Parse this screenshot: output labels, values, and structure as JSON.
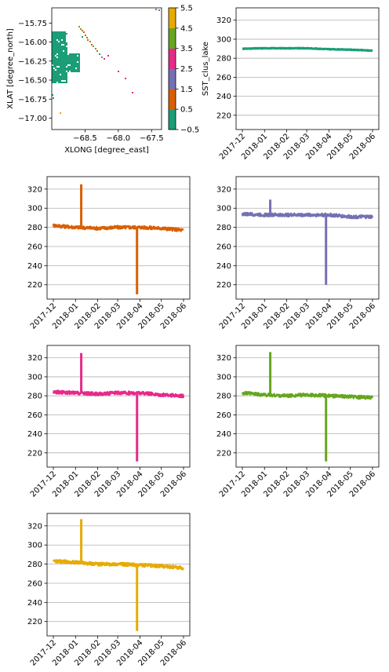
{
  "colors": {
    "teal": "#1b9e77",
    "orange": "#d95f02",
    "purple": "#7570b3",
    "pink": "#e7298a",
    "green": "#66a61e",
    "gold": "#e6ab02",
    "grid": "#b0b0b0"
  },
  "chart_data": [
    {
      "type": "heatmap",
      "panel": "map",
      "xlabel": "XLONG [degree_east]",
      "ylabel": "XLAT [degree_north]",
      "xticks": [
        "−68.5",
        "−68.0",
        "−67.5"
      ],
      "xtick_values": [
        -68.5,
        -68.0,
        -67.5
      ],
      "yticks": [
        "−15.75",
        "−16.00",
        "−16.25",
        "−16.50",
        "−16.75",
        "−17.00"
      ],
      "ytick_values": [
        -15.75,
        -16.0,
        -16.25,
        -16.5,
        -16.75,
        -17.0
      ],
      "xlim": [
        -69.0,
        -67.35
      ],
      "ylim": [
        -17.15,
        -15.55
      ],
      "colorbar": {
        "ticks": [
          "−0.5",
          "0.5",
          "1.5",
          "2.5",
          "3.5",
          "4.5",
          "5.5"
        ],
        "range": [
          -0.5,
          5.5
        ],
        "class_colors": [
          "#1b9e77",
          "#d95f02",
          "#7570b3",
          "#e7298a",
          "#66a61e",
          "#e6ab02"
        ]
      }
    },
    {
      "type": "line",
      "panel": "cluster-0",
      "color": "#1b9e77",
      "ylabel": "SST_clus_lake",
      "x": [
        "2017-12-01",
        "2018-01-01",
        "2018-02-01",
        "2018-03-01",
        "2018-04-01",
        "2018-05-01",
        "2018-06-01"
      ],
      "y": [
        290,
        290.5,
        290.5,
        290.5,
        289.5,
        289,
        288
      ],
      "ylim": [
        205,
        333
      ],
      "grid": "y"
    },
    {
      "type": "line",
      "panel": "cluster-1",
      "color": "#d95f02",
      "x": [
        "2017-12-01",
        "2018-01-01",
        "2018-02-01",
        "2018-03-01",
        "2018-04-01",
        "2018-05-01",
        "2018-06-01"
      ],
      "y": [
        282,
        280,
        279,
        280,
        280,
        279,
        277
      ],
      "spike_up": {
        "x": "2018-01-09",
        "y": 325
      },
      "spike_down": {
        "x": "2018-03-28",
        "y": 210
      },
      "ylim": [
        205,
        333
      ],
      "grid": "y"
    },
    {
      "type": "line",
      "panel": "cluster-2",
      "color": "#7570b3",
      "x": [
        "2017-12-01",
        "2018-01-01",
        "2018-02-01",
        "2018-03-01",
        "2018-04-01",
        "2018-05-01",
        "2018-06-01"
      ],
      "y": [
        294,
        293,
        293,
        293,
        293,
        291,
        291
      ],
      "spike_up": {
        "x": "2018-01-09",
        "y": 309
      },
      "spike_down": {
        "x": "2018-03-28",
        "y": 220
      },
      "ylim": [
        205,
        333
      ],
      "grid": "y"
    },
    {
      "type": "line",
      "panel": "cluster-3",
      "color": "#e7298a",
      "x": [
        "2017-12-01",
        "2018-01-01",
        "2018-02-01",
        "2018-03-01",
        "2018-04-01",
        "2018-05-01",
        "2018-06-01"
      ],
      "y": [
        284,
        283,
        282,
        283,
        283,
        281,
        280
      ],
      "spike_up": {
        "x": "2018-01-09",
        "y": 325
      },
      "spike_down": {
        "x": "2018-03-28",
        "y": 211
      },
      "ylim": [
        205,
        333
      ],
      "grid": "y"
    },
    {
      "type": "line",
      "panel": "cluster-4",
      "color": "#66a61e",
      "x": [
        "2017-12-01",
        "2018-01-01",
        "2018-02-01",
        "2018-03-01",
        "2018-04-01",
        "2018-05-01",
        "2018-06-01"
      ],
      "y": [
        283,
        281,
        280,
        281,
        280,
        279,
        278
      ],
      "spike_up": {
        "x": "2018-01-09",
        "y": 326
      },
      "spike_down": {
        "x": "2018-03-28",
        "y": 211
      },
      "ylim": [
        205,
        333
      ],
      "grid": "y"
    },
    {
      "type": "line",
      "panel": "cluster-5",
      "color": "#e6ab02",
      "x": [
        "2017-12-01",
        "2018-01-01",
        "2018-02-01",
        "2018-03-01",
        "2018-04-01",
        "2018-05-01",
        "2018-06-01"
      ],
      "y": [
        283,
        282,
        280,
        280,
        279,
        278,
        276
      ],
      "spike_up": {
        "x": "2018-01-09",
        "y": 327
      },
      "spike_down": {
        "x": "2018-03-28",
        "y": 210
      },
      "ylim": [
        205,
        333
      ],
      "grid": "y"
    }
  ],
  "axes": {
    "ts_yticks": [
      "220",
      "240",
      "260",
      "280",
      "300",
      "320"
    ],
    "ts_ytick_values": [
      220,
      240,
      260,
      280,
      300,
      320
    ],
    "ts_xticks": [
      "2017-12",
      "2018-01",
      "2018-02",
      "2018-03",
      "2018-04",
      "2018-05",
      "2018-06"
    ]
  }
}
